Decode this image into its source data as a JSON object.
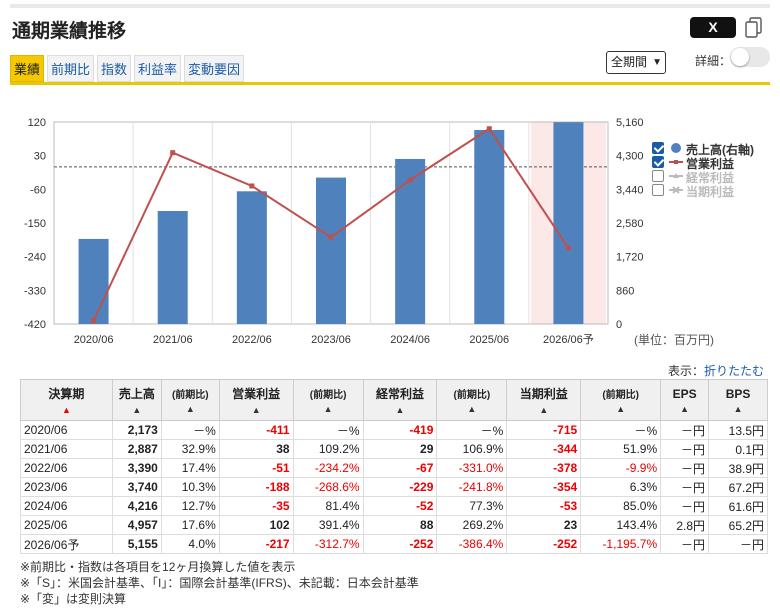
{
  "header": {
    "title": "通期業績推移",
    "x_label": "X",
    "detail_label": "詳細：",
    "period_select": "全期間"
  },
  "tabs": [
    {
      "label": "業績",
      "active": true
    },
    {
      "label": "前期比",
      "active": false
    },
    {
      "label": "指数",
      "active": false
    },
    {
      "label": "利益率",
      "active": false
    },
    {
      "label": "変動要因",
      "active": false
    }
  ],
  "chart_data": {
    "type": "bar",
    "categories": [
      "2020/06",
      "2021/06",
      "2022/06",
      "2023/06",
      "2024/06",
      "2025/06",
      "2026/06予"
    ],
    "series": [
      {
        "name": "売上高(右軸)",
        "kind": "bar",
        "axis": "right",
        "color": "#4f81bd",
        "values": [
          2173,
          2887,
          3390,
          3740,
          4216,
          4957,
          5155
        ]
      },
      {
        "name": "営業利益",
        "kind": "line",
        "axis": "left",
        "color": "#c0504d",
        "values": [
          -411,
          38,
          -51,
          -188,
          -35,
          102,
          -217
        ]
      }
    ],
    "left_axis": {
      "ticks": [
        "120",
        "30",
        "-60",
        "-150",
        "-240",
        "-330",
        "-420"
      ],
      "min": -420,
      "max": 120
    },
    "right_axis": {
      "ticks": [
        "5,160",
        "4,300",
        "3,440",
        "2,580",
        "1,720",
        "860",
        "0"
      ],
      "min": 0,
      "max": 5160
    },
    "forecast_index": 6,
    "legend": [
      {
        "name": "売上高(右軸)",
        "checked": true,
        "color": "#4f81bd"
      },
      {
        "name": "営業利益",
        "checked": true,
        "color": "#c0504d"
      },
      {
        "name": "経常利益",
        "checked": false,
        "color": "#bbbbbb"
      },
      {
        "name": "当期利益",
        "checked": false,
        "color": "#bbbbbb"
      }
    ],
    "unit_label": "(単位：百万円)"
  },
  "display": {
    "label": "表示：",
    "link": "折りたたむ"
  },
  "table": {
    "headers": [
      "決算期",
      "売上高",
      "(前期比)",
      "営業利益",
      "(前期比)",
      "経常利益",
      "(前期比)",
      "当期利益",
      "(前期比)",
      "EPS",
      "BPS"
    ],
    "sort_marks": [
      "▲",
      "▲",
      "▲",
      "▲",
      "▲",
      "▲",
      "▲",
      "▲",
      "▲",
      "▲",
      "▲"
    ],
    "rows": [
      [
        "2020/06",
        "2,173",
        "－%",
        "-411",
        "－%",
        "-419",
        "－%",
        "-715",
        "－%",
        "－円",
        "13.5円"
      ],
      [
        "2021/06",
        "2,887",
        "32.9%",
        "38",
        "109.2%",
        "29",
        "106.9%",
        "-344",
        "51.9%",
        "－円",
        "0.1円"
      ],
      [
        "2022/06",
        "3,390",
        "17.4%",
        "-51",
        "-234.2%",
        "-67",
        "-331.0%",
        "-378",
        "-9.9%",
        "－円",
        "38.9円"
      ],
      [
        "2023/06",
        "3,740",
        "10.3%",
        "-188",
        "-268.6%",
        "-229",
        "-241.8%",
        "-354",
        "6.3%",
        "－円",
        "67.2円"
      ],
      [
        "2024/06",
        "4,216",
        "12.7%",
        "-35",
        "81.4%",
        "-52",
        "77.3%",
        "-53",
        "85.0%",
        "－円",
        "61.6円"
      ],
      [
        "2025/06",
        "4,957",
        "17.6%",
        "102",
        "391.4%",
        "88",
        "269.2%",
        "23",
        "143.4%",
        "2.8円",
        "65.2円"
      ],
      [
        "2026/06予",
        "5,155",
        "4.0%",
        "-217",
        "-312.7%",
        "-252",
        "-386.4%",
        "-252",
        "-1,195.7%",
        "－円",
        "－円"
      ]
    ]
  },
  "notes": [
    "※前期比・指数は各項目を12ヶ月換算した値を表示",
    "※「S」：米国会計基準、「I」：国際会計基準(IFRS)、未記載：日本会計基準",
    "※「変」は変則決算"
  ]
}
